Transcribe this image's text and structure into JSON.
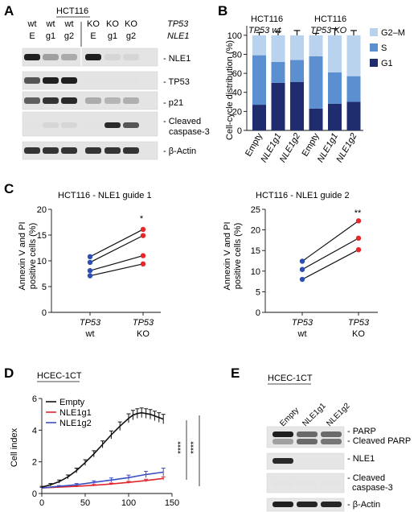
{
  "panels": {
    "A": {
      "label": "A",
      "cell_line": "HCT116",
      "lane_row1": [
        "wt",
        "wt",
        "wt",
        "KO",
        "KO",
        "KO"
      ],
      "lane_row2": [
        "E",
        "g1",
        "g2",
        "E",
        "g1",
        "g2"
      ],
      "row1_title": "TP53",
      "row2_title": "NLE1",
      "blots": [
        "- NLE1",
        "- TP53",
        "- p21",
        "- Cleaved",
        "caspase-3",
        "- β-Actin"
      ],
      "blot_intensity": [
        [
          0.95,
          0.35,
          0.3,
          0.95,
          0.1,
          0.1
        ],
        [
          0.7,
          0.95,
          0.95,
          0.05,
          0.05,
          0.05
        ],
        [
          0.65,
          0.85,
          0.9,
          0.3,
          0.25,
          0.28
        ],
        [
          0.05,
          0.1,
          0.1,
          0.05,
          0.9,
          0.7
        ],
        [
          0.85,
          0.85,
          0.85,
          0.85,
          0.85,
          0.85
        ]
      ]
    },
    "B": {
      "label": "B",
      "group1_line1": "HCT116",
      "group1_line2": "TP53 wt",
      "group2_line1": "HCT116",
      "group2_line2": "TP53 KO",
      "legend": [
        "G2–M",
        "S",
        "G1"
      ],
      "colors": {
        "G1": "#1f2d6e",
        "S": "#5b8fcf",
        "G2M": "#b9d3ee"
      }
    },
    "C": {
      "label": "C",
      "title1": "HCT116 - NLE1 guide 1",
      "title2": "HCT116 - NLE1 guide 2",
      "ylabel1": "Annexin V and PI",
      "ylabel2": "positive cells (%)",
      "x1_line1": "TP53",
      "x1_line2": "wt",
      "x2_line1": "TP53",
      "x2_line2": "KO",
      "sig1": "*",
      "sig2": "**",
      "colors": {
        "wt": "#2d4fb5",
        "ko": "#e6282b"
      }
    },
    "D": {
      "label": "D",
      "title": "HCEC-1CT",
      "ylabel": "Cell index",
      "legend": [
        "Empty",
        "NLE1g1",
        "NLE1g2"
      ],
      "sig": "****",
      "colors": {
        "Empty": "#111111",
        "NLE1g1": "#e0262b",
        "NLE1g2": "#3b4fc2"
      }
    },
    "E": {
      "label": "E",
      "title": "HCEC-1CT",
      "lanes": [
        "Empty",
        "NLE1g1",
        "NLE1g2"
      ],
      "blots": [
        "- PARP",
        "- Cleaved PARP",
        "- NLE1",
        "- Cleaved",
        "caspase-3",
        "- β-Actin"
      ]
    }
  },
  "chart_data": [
    {
      "type": "bar",
      "panel": "B",
      "ylabel": "Cell-cycle distribution (%)",
      "categories": [
        "Empty",
        "NLE1g1",
        "NLE1g2",
        "Empty",
        "NLE1g1",
        "NLE1g2"
      ],
      "yticks": [
        "0",
        "20",
        "40",
        "60",
        "80",
        "100"
      ],
      "ylim": [
        0,
        110
      ],
      "stacked": true,
      "series": [
        {
          "name": "G1",
          "values": [
            27,
            50,
            51,
            23,
            28,
            30
          ],
          "err": [
            2,
            5,
            10,
            1,
            5,
            3
          ]
        },
        {
          "name": "S",
          "values": [
            52,
            22,
            23,
            55,
            33,
            27
          ],
          "err": [
            1,
            10,
            12,
            1,
            4,
            4
          ]
        },
        {
          "name": "G2–M",
          "values": [
            21,
            28,
            26,
            22,
            39,
            43
          ],
          "err": [
            3,
            4,
            5,
            2,
            7,
            5
          ]
        }
      ]
    },
    {
      "type": "scatter",
      "panel": "C1",
      "title": "HCT116 - NLE1 guide 1",
      "categories": [
        "TP53 wt",
        "TP53 KO"
      ],
      "ylim": [
        0,
        20
      ],
      "yticks": [
        "0",
        "5",
        "10",
        "15",
        "20"
      ],
      "pairs": [
        [
          10.8,
          16.1
        ],
        [
          9.7,
          14.9
        ],
        [
          8.1,
          11.0
        ],
        [
          7.1,
          9.4
        ]
      ]
    },
    {
      "type": "scatter",
      "panel": "C2",
      "title": "HCT116 - NLE1 guide 2",
      "categories": [
        "TP53 wt",
        "TP53 KO"
      ],
      "ylim": [
        0,
        25
      ],
      "yticks": [
        "0",
        "5",
        "10",
        "15",
        "20",
        "25"
      ],
      "pairs": [
        [
          12.4,
          22.2
        ],
        [
          10.4,
          18.0
        ],
        [
          8.0,
          15.2
        ]
      ]
    },
    {
      "type": "line",
      "panel": "D",
      "title": "HCEC-1CT",
      "ylabel": "Cell index",
      "xlim": [
        0,
        150
      ],
      "ylim": [
        0,
        6
      ],
      "xticks": [
        "0",
        "50",
        "100",
        "150"
      ],
      "yticks": [
        "0",
        "2",
        "4",
        "6"
      ],
      "series": [
        {
          "name": "Empty",
          "x": [
            0,
            10,
            20,
            30,
            40,
            50,
            60,
            70,
            80,
            90,
            100,
            105,
            110,
            115,
            120,
            125,
            130,
            135,
            140
          ],
          "y": [
            0.4,
            0.55,
            0.75,
            1.05,
            1.45,
            1.95,
            2.5,
            3.1,
            3.7,
            4.25,
            4.75,
            4.95,
            5.05,
            5.1,
            5.05,
            5.0,
            4.9,
            4.8,
            4.7
          ],
          "err": [
            0.05,
            0.08,
            0.1,
            0.12,
            0.15,
            0.18,
            0.2,
            0.22,
            0.25,
            0.27,
            0.28,
            0.3,
            0.3,
            0.3,
            0.3,
            0.3,
            0.3,
            0.3,
            0.3
          ]
        },
        {
          "name": "NLE1g1",
          "x": [
            0,
            20,
            40,
            60,
            80,
            100,
            120,
            140
          ],
          "y": [
            0.35,
            0.4,
            0.45,
            0.52,
            0.6,
            0.7,
            0.82,
            0.95
          ],
          "err": [
            0.03,
            0.03,
            0.04,
            0.05,
            0.06,
            0.07,
            0.08,
            0.1
          ]
        },
        {
          "name": "NLE1g2",
          "x": [
            0,
            20,
            40,
            60,
            80,
            100,
            120,
            140
          ],
          "y": [
            0.35,
            0.45,
            0.55,
            0.7,
            0.85,
            1.0,
            1.2,
            1.35
          ],
          "err": [
            0.04,
            0.05,
            0.08,
            0.1,
            0.13,
            0.16,
            0.2,
            0.25
          ]
        }
      ]
    }
  ]
}
